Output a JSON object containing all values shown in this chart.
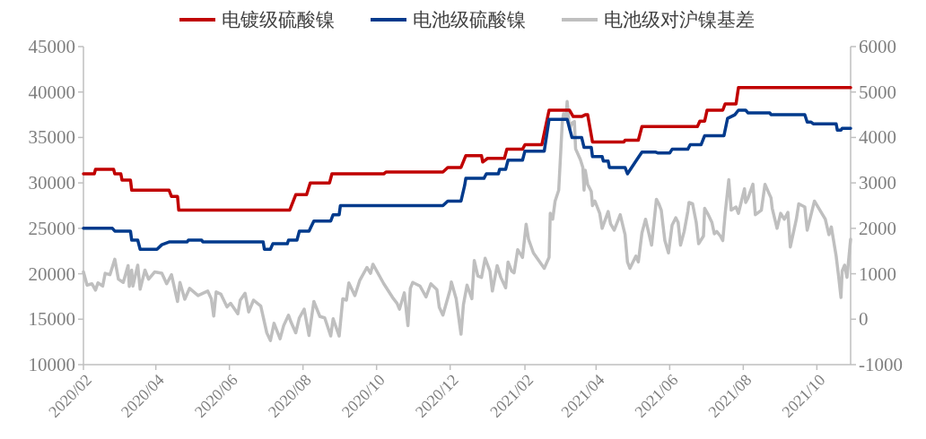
{
  "chart_data": {
    "type": "line",
    "xlim": [
      "2020-02-01",
      "2021-10-29"
    ],
    "xticks": [
      {
        "value": "2020-02",
        "label": "2020/02"
      },
      {
        "value": "2020-04",
        "label": "2020/04"
      },
      {
        "value": "2020-06",
        "label": "2020/06"
      },
      {
        "value": "2020-08",
        "label": "2020/08"
      },
      {
        "value": "2020-10",
        "label": "2020/10"
      },
      {
        "value": "2020-12",
        "label": "2020/12"
      },
      {
        "value": "2021-02",
        "label": "2021/02"
      },
      {
        "value": "2021-04",
        "label": "2021/04"
      },
      {
        "value": "2021-06",
        "label": "2021/06"
      },
      {
        "value": "2021-08",
        "label": "2021/08"
      },
      {
        "value": "2021-10",
        "label": "2021/10"
      }
    ],
    "ylim": [
      10000,
      45000
    ],
    "yticks": [
      10000,
      15000,
      20000,
      25000,
      30000,
      35000,
      40000,
      45000
    ],
    "y2lim": [
      -1000,
      6000
    ],
    "y2ticks": [
      -1000,
      0,
      1000,
      2000,
      3000,
      4000,
      5000,
      6000
    ],
    "grid": false,
    "legend": "top",
    "marker": "none",
    "line_style": "solid",
    "series": [
      {
        "name": "电镀级硫酸镍",
        "color": "#c00000",
        "x": [
          "2020-02-01",
          "2020-02-10",
          "2020-02-11",
          "2020-02-26",
          "2020-02-27",
          "2020-03-03",
          "2020-03-04",
          "2020-03-11",
          "2020-03-12",
          "2020-04-12",
          "2020-04-14",
          "2020-04-19",
          "2020-04-20",
          "2020-07-21",
          "2020-07-26",
          "2020-08-04",
          "2020-08-07",
          "2020-08-23",
          "2020-08-25",
          "2020-10-07",
          "2020-10-09",
          "2020-11-25",
          "2020-11-29",
          "2020-12-10",
          "2020-12-14",
          "2020-12-27",
          "2020-12-28",
          "2021-01-01",
          "2021-01-15",
          "2021-01-17",
          "2021-01-30",
          "2021-02-01",
          "2021-02-15",
          "2021-02-21",
          "2021-03-10",
          "2021-03-13",
          "2021-03-20",
          "2021-03-23",
          "2021-03-25",
          "2021-03-29",
          "2021-04-24",
          "2021-04-25",
          "2021-05-06",
          "2021-05-09",
          "2021-06-24",
          "2021-06-26",
          "2021-06-30",
          "2021-07-02",
          "2021-07-15",
          "2021-07-17",
          "2021-07-26",
          "2021-07-28",
          "2021-10-29"
        ],
        "values": [
          31000,
          31000,
          31500,
          31500,
          31000,
          31000,
          30300,
          30300,
          29200,
          29200,
          28500,
          28500,
          27000,
          27000,
          28700,
          28700,
          30000,
          30000,
          31000,
          31000,
          31200,
          31200,
          31700,
          31700,
          33000,
          33000,
          32300,
          32700,
          32700,
          33700,
          33700,
          34200,
          34200,
          38000,
          38000,
          37300,
          37300,
          37500,
          37500,
          34500,
          34500,
          34700,
          34700,
          36200,
          36200,
          36800,
          36800,
          38000,
          38000,
          38700,
          38700,
          40500,
          40500
        ]
      },
      {
        "name": "电池级硫酸镍",
        "color": "#003a8c",
        "x": [
          "2020-02-01",
          "2020-02-25",
          "2020-02-27",
          "2020-03-11",
          "2020-03-12",
          "2020-03-17",
          "2020-03-19",
          "2020-04-02",
          "2020-04-06",
          "2020-04-12",
          "2020-04-27",
          "2020-04-28",
          "2020-05-09",
          "2020-05-10",
          "2020-06-29",
          "2020-06-30",
          "2020-07-05",
          "2020-07-07",
          "2020-07-19",
          "2020-07-20",
          "2020-07-27",
          "2020-07-29",
          "2020-08-06",
          "2020-08-10",
          "2020-08-24",
          "2020-08-26",
          "2020-08-31",
          "2020-09-01",
          "2020-11-25",
          "2020-11-29",
          "2020-12-10",
          "2020-12-13",
          "2020-12-14",
          "2020-12-29",
          "2020-12-31",
          "2021-01-10",
          "2021-01-11",
          "2021-01-16",
          "2021-01-18",
          "2021-01-30",
          "2021-02-01",
          "2021-02-17",
          "2021-02-21",
          "2021-03-08",
          "2021-03-12",
          "2021-03-20",
          "2021-03-22",
          "2021-03-28",
          "2021-03-29",
          "2021-04-06",
          "2021-04-07",
          "2021-04-11",
          "2021-04-12",
          "2021-04-25",
          "2021-04-27",
          "2021-05-04",
          "2021-05-09",
          "2021-05-20",
          "2021-05-22",
          "2021-06-01",
          "2021-06-03",
          "2021-06-16",
          "2021-06-18",
          "2021-06-27",
          "2021-06-30",
          "2021-07-16",
          "2021-07-19",
          "2021-07-25",
          "2021-07-28",
          "2021-08-03",
          "2021-08-05",
          "2021-08-23",
          "2021-08-24",
          "2021-09-21",
          "2021-09-23",
          "2021-09-26",
          "2021-09-28",
          "2021-10-17",
          "2021-10-18",
          "2021-10-21",
          "2021-10-22",
          "2021-10-29"
        ],
        "values": [
          25000,
          25000,
          24700,
          24700,
          23700,
          23700,
          22700,
          22700,
          23200,
          23500,
          23500,
          23700,
          23700,
          23500,
          23500,
          22700,
          22700,
          23300,
          23300,
          23700,
          23700,
          24700,
          24700,
          25800,
          25800,
          26500,
          26500,
          27500,
          27500,
          28000,
          28000,
          29700,
          30500,
          30500,
          31000,
          31000,
          31500,
          31500,
          32500,
          32500,
          33500,
          33500,
          37000,
          37000,
          35000,
          35000,
          33900,
          33900,
          32900,
          32900,
          32400,
          32400,
          31700,
          31700,
          31000,
          32400,
          33400,
          33400,
          33300,
          33300,
          33700,
          33700,
          34200,
          34200,
          35200,
          35200,
          37100,
          37500,
          38000,
          38000,
          37700,
          37700,
          37500,
          37500,
          36700,
          36700,
          36500,
          36500,
          35800,
          35800,
          36000,
          36000
        ]
      },
      {
        "name": "电池级对沪镍基差",
        "color": "#bfbfbf",
        "axis": "y2",
        "x": [
          "2020-02-01",
          "2020-02-04",
          "2020-02-08",
          "2020-02-11",
          "2020-02-13",
          "2020-02-17",
          "2020-02-19",
          "2020-02-23",
          "2020-02-27",
          "2020-03-01",
          "2020-03-05",
          "2020-03-09",
          "2020-03-10",
          "2020-03-12",
          "2020-03-13",
          "2020-03-17",
          "2020-03-19",
          "2020-03-23",
          "2020-03-26",
          "2020-03-31",
          "2020-04-06",
          "2020-04-10",
          "2020-04-14",
          "2020-04-19",
          "2020-04-21",
          "2020-04-25",
          "2020-04-29",
          "2020-05-06",
          "2020-05-14",
          "2020-05-17",
          "2020-05-19",
          "2020-05-21",
          "2020-05-25",
          "2020-05-30",
          "2020-06-02",
          "2020-06-08",
          "2020-06-10",
          "2020-06-14",
          "2020-06-17",
          "2020-06-21",
          "2020-06-27",
          "2020-07-02",
          "2020-07-05",
          "2020-07-08",
          "2020-07-13",
          "2020-07-16",
          "2020-07-20",
          "2020-07-22",
          "2020-07-26",
          "2020-07-29",
          "2020-08-02",
          "2020-08-06",
          "2020-08-10",
          "2020-08-15",
          "2020-08-19",
          "2020-08-24",
          "2020-08-26",
          "2020-08-31",
          "2020-09-03",
          "2020-09-06",
          "2020-09-08",
          "2020-09-13",
          "2020-09-17",
          "2020-09-23",
          "2020-09-26",
          "2020-09-28",
          "2020-10-07",
          "2020-10-15",
          "2020-10-18",
          "2020-10-20",
          "2020-10-24",
          "2020-10-27",
          "2020-10-29",
          "2020-10-31",
          "2020-11-06",
          "2020-11-11",
          "2020-11-15",
          "2020-11-20",
          "2020-11-22",
          "2020-11-25",
          "2020-12-01",
          "2020-12-02",
          "2020-12-06",
          "2020-12-10",
          "2020-12-12",
          "2020-12-15",
          "2020-12-19",
          "2020-12-21",
          "2020-12-24",
          "2020-12-27",
          "2020-12-30",
          "2021-01-03",
          "2021-01-05",
          "2021-01-09",
          "2021-01-12",
          "2021-01-16",
          "2021-01-18",
          "2021-01-21",
          "2021-01-23",
          "2021-01-26",
          "2021-01-30",
          "2021-02-02",
          "2021-02-04",
          "2021-02-08",
          "2021-02-17",
          "2021-02-21",
          "2021-02-22",
          "2021-02-24",
          "2021-02-26",
          "2021-03-01",
          "2021-03-04",
          "2021-03-05",
          "2021-03-07",
          "2021-03-08",
          "2021-03-10",
          "2021-03-12",
          "2021-03-14",
          "2021-03-15",
          "2021-03-19",
          "2021-03-21",
          "2021-03-22",
          "2021-03-23",
          "2021-03-25",
          "2021-03-28",
          "2021-03-29",
          "2021-03-31",
          "2021-04-04",
          "2021-04-06",
          "2021-04-11",
          "2021-04-13",
          "2021-04-16",
          "2021-04-21",
          "2021-04-25",
          "2021-04-27",
          "2021-04-29",
          "2021-05-04",
          "2021-05-06",
          "2021-05-09",
          "2021-05-12",
          "2021-05-17",
          "2021-05-21",
          "2021-05-23",
          "2021-05-25",
          "2021-05-28",
          "2021-05-31",
          "2021-06-03",
          "2021-06-06",
          "2021-06-08",
          "2021-06-10",
          "2021-06-13",
          "2021-06-16",
          "2021-06-17",
          "2021-06-20",
          "2021-06-23",
          "2021-06-25",
          "2021-06-29",
          "2021-06-30",
          "2021-07-03",
          "2021-07-06",
          "2021-07-08",
          "2021-07-10",
          "2021-07-13",
          "2021-07-15",
          "2021-07-17",
          "2021-07-20",
          "2021-07-22",
          "2021-07-26",
          "2021-07-28",
          "2021-08-02",
          "2021-08-03",
          "2021-08-05",
          "2021-08-09",
          "2021-08-11",
          "2021-08-16",
          "2021-08-19",
          "2021-08-24",
          "2021-08-25",
          "2021-08-29",
          "2021-09-01",
          "2021-09-04",
          "2021-09-07",
          "2021-09-09",
          "2021-09-14",
          "2021-09-16",
          "2021-09-21",
          "2021-09-23",
          "2021-09-29",
          "2021-10-08",
          "2021-10-11",
          "2021-10-13",
          "2021-10-17",
          "2021-10-19",
          "2021-10-21",
          "2021-10-22",
          "2021-10-24",
          "2021-10-26",
          "2021-10-29"
        ],
        "values": [
          1040,
          750,
          780,
          640,
          800,
          730,
          1010,
          980,
          1320,
          880,
          810,
          1180,
          720,
          1080,
          730,
          1190,
          660,
          1080,
          880,
          1040,
          1010,
          780,
          980,
          390,
          810,
          440,
          680,
          520,
          620,
          450,
          70,
          600,
          550,
          270,
          350,
          120,
          420,
          570,
          160,
          420,
          290,
          -300,
          -470,
          -90,
          -430,
          -140,
          90,
          -60,
          -300,
          30,
          220,
          -360,
          390,
          60,
          30,
          -370,
          10,
          -370,
          450,
          420,
          800,
          520,
          850,
          1140,
          1010,
          1210,
          780,
          450,
          350,
          220,
          580,
          -140,
          680,
          810,
          730,
          490,
          780,
          650,
          260,
          90,
          650,
          820,
          450,
          -330,
          320,
          750,
          450,
          1290,
          950,
          920,
          1340,
          1060,
          620,
          1180,
          920,
          690,
          1260,
          1060,
          1020,
          1530,
          1360,
          2090,
          1760,
          1460,
          1120,
          1360,
          2330,
          2200,
          2600,
          2840,
          4350,
          4520,
          4420,
          4790,
          4180,
          4320,
          4350,
          3750,
          3510,
          3340,
          2840,
          3280,
          2970,
          2810,
          2500,
          2600,
          2330,
          2000,
          2370,
          2100,
          1960,
          2300,
          1860,
          1260,
          1120,
          1390,
          1260,
          1900,
          2200,
          1630,
          2640,
          2540,
          2400,
          1730,
          1460,
          2070,
          2230,
          2130,
          1630,
          1930,
          2370,
          2570,
          2540,
          2130,
          1660,
          1830,
          2440,
          2300,
          2130,
          1880,
          1930,
          1830,
          1730,
          2330,
          3070,
          2400,
          2470,
          2330,
          2870,
          2570,
          2670,
          2970,
          2300,
          2400,
          2970,
          2670,
          2440,
          2000,
          2330,
          2200,
          2350,
          1590,
          2200,
          2540,
          2470,
          1960,
          2600,
          2200,
          1860,
          2030,
          1390,
          950,
          480,
          1060,
          1190,
          920,
          1760
        ]
      }
    ]
  }
}
